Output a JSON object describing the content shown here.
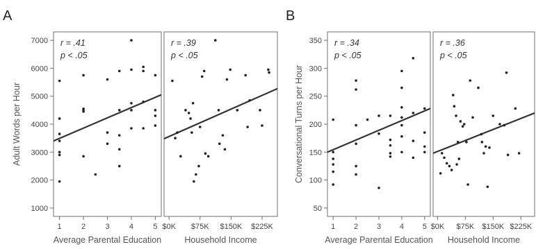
{
  "panel_labels": [
    "A",
    "B"
  ],
  "chart_data": [
    {
      "type": "scatter",
      "panel": "A",
      "ylabel": "Adult Words per Hour",
      "ylim": [
        700,
        7300
      ],
      "yticks": [
        1000,
        2000,
        3000,
        4000,
        5000,
        6000,
        7000
      ],
      "ytick_labels": [
        "1000",
        "2000",
        "3000",
        "4000",
        "5000",
        "6000",
        "7000"
      ],
      "subplots": [
        {
          "xlabel": "Average Parental Education",
          "xlim": [
            0.75,
            5.25
          ],
          "xticks": [
            1,
            2,
            3,
            4,
            5
          ],
          "xtick_labels": [
            "1",
            "2",
            "3",
            "4",
            "5"
          ],
          "r_text": "r = .41",
          "p_text": "p < .05",
          "fit": [
            [
              0.75,
              3400
            ],
            [
              5.25,
              5050
            ]
          ],
          "points": [
            [
              1,
              5550
            ],
            [
              1,
              3650
            ],
            [
              1,
              3400
            ],
            [
              1,
              3000
            ],
            [
              1,
              2900
            ],
            [
              1,
              1950
            ],
            [
              1,
              4200
            ],
            [
              2,
              5750
            ],
            [
              2,
              4550
            ],
            [
              2,
              4450
            ],
            [
              2,
              4500
            ],
            [
              2,
              2850
            ],
            [
              2.5,
              2200
            ],
            [
              3,
              5600
            ],
            [
              3,
              3700
            ],
            [
              3,
              3300
            ],
            [
              3.5,
              5900
            ],
            [
              3.5,
              4500
            ],
            [
              3.5,
              3600
            ],
            [
              3.5,
              3100
            ],
            [
              3.5,
              2500
            ],
            [
              4,
              7000
            ],
            [
              4,
              5950
            ],
            [
              4,
              4750
            ],
            [
              4,
              4500
            ],
            [
              4,
              3850
            ],
            [
              4.5,
              6050
            ],
            [
              4.5,
              5900
            ],
            [
              4.5,
              4800
            ],
            [
              4.5,
              3850
            ],
            [
              5,
              5750
            ],
            [
              5,
              4500
            ],
            [
              5,
              4300
            ],
            [
              5,
              3950
            ]
          ]
        },
        {
          "xlabel": "Household Income",
          "xlim": [
            -12,
            262
          ],
          "xticks": [
            0,
            75,
            150,
            225
          ],
          "xtick_labels": [
            "$0K",
            "$75K",
            "$150K",
            "$225K"
          ],
          "r_text": "r = .39",
          "p_text": "p < .05",
          "fit": [
            [
              -12,
              3480
            ],
            [
              262,
              5270
            ]
          ],
          "points": [
            [
              8,
              5550
            ],
            [
              15,
              3500
            ],
            [
              20,
              3700
            ],
            [
              28,
              2850
            ],
            [
              40,
              4500
            ],
            [
              48,
              4400
            ],
            [
              52,
              4200
            ],
            [
              55,
              3700
            ],
            [
              58,
              4750
            ],
            [
              60,
              1950
            ],
            [
              65,
              2200
            ],
            [
              72,
              2500
            ],
            [
              75,
              3900
            ],
            [
              80,
              5700
            ],
            [
              85,
              5900
            ],
            [
              88,
              2950
            ],
            [
              95,
              2850
            ],
            [
              112,
              7000
            ],
            [
              120,
              4500
            ],
            [
              122,
              3300
            ],
            [
              130,
              3600
            ],
            [
              135,
              3100
            ],
            [
              140,
              5600
            ],
            [
              148,
              5950
            ],
            [
              165,
              4500
            ],
            [
              185,
              5750
            ],
            [
              190,
              3900
            ],
            [
              195,
              4850
            ],
            [
              220,
              4500
            ],
            [
              225,
              3950
            ],
            [
              240,
              5950
            ],
            [
              242,
              5850
            ]
          ]
        }
      ]
    },
    {
      "type": "scatter",
      "panel": "B",
      "ylabel": "Conversational Turns per Hour",
      "ylim": [
        35,
        365
      ],
      "yticks": [
        50,
        100,
        150,
        200,
        250,
        300,
        350
      ],
      "ytick_labels": [
        "50",
        "100",
        "150",
        "200",
        "250",
        "300",
        "350"
      ],
      "subplots": [
        {
          "xlabel": "Average Parental Education",
          "xlim": [
            0.75,
            5.25
          ],
          "xticks": [
            1,
            2,
            3,
            4,
            5
          ],
          "xtick_labels": [
            "1",
            "2",
            "3",
            "4",
            "5"
          ],
          "r_text": "r = .34",
          "p_text": "p < .05",
          "fit": [
            [
              0.75,
              150
            ],
            [
              5.25,
              228
            ]
          ],
          "points": [
            [
              1,
              208
            ],
            [
              1,
              150
            ],
            [
              1,
              138
            ],
            [
              1,
              128
            ],
            [
              1,
              115
            ],
            [
              1,
              92
            ],
            [
              2,
              278
            ],
            [
              2,
              262
            ],
            [
              2,
              198
            ],
            [
              2,
              165
            ],
            [
              2,
              125
            ],
            [
              2,
              110
            ],
            [
              2.5,
              208
            ],
            [
              3,
              215
            ],
            [
              3,
              183
            ],
            [
              3,
              86
            ],
            [
              3.5,
              215
            ],
            [
              3.5,
              172
            ],
            [
              3.5,
              162
            ],
            [
              3.5,
              148
            ],
            [
              3.5,
              142
            ],
            [
              4,
              295
            ],
            [
              4,
              265
            ],
            [
              4,
              230
            ],
            [
              4,
              212
            ],
            [
              4,
              198
            ],
            [
              4,
              178
            ],
            [
              4,
              150
            ],
            [
              4.5,
              318
            ],
            [
              4.5,
              220
            ],
            [
              4.5,
              170
            ],
            [
              4.5,
              140
            ],
            [
              5,
              228
            ],
            [
              5,
              185
            ],
            [
              5,
              160
            ],
            [
              5,
              150
            ]
          ]
        },
        {
          "xlabel": "Household Income",
          "xlim": [
            -12,
            262
          ],
          "xticks": [
            0,
            75,
            150,
            225
          ],
          "xtick_labels": [
            "$0K",
            "$75K",
            "$150K",
            "$225K"
          ],
          "r_text": "r = .36",
          "p_text": "p < .05",
          "fit": [
            [
              -12,
              148
            ],
            [
              262,
              220
            ]
          ],
          "points": [
            [
              8,
              112
            ],
            [
              12,
              148
            ],
            [
              18,
              140
            ],
            [
              25,
              130
            ],
            [
              32,
              125
            ],
            [
              38,
              118
            ],
            [
              42,
              252
            ],
            [
              45,
              232
            ],
            [
              50,
              215
            ],
            [
              52,
              128
            ],
            [
              55,
              168
            ],
            [
              58,
              138
            ],
            [
              62,
              205
            ],
            [
              68,
              196
            ],
            [
              72,
              200
            ],
            [
              78,
              168
            ],
            [
              82,
              92
            ],
            [
              88,
              278
            ],
            [
              95,
              212
            ],
            [
              110,
              265
            ],
            [
              118,
              182
            ],
            [
              120,
              168
            ],
            [
              125,
              148
            ],
            [
              130,
              160
            ],
            [
              135,
              88
            ],
            [
              140,
              158
            ],
            [
              150,
              215
            ],
            [
              168,
              200
            ],
            [
              180,
              198
            ],
            [
              186,
              292
            ],
            [
              190,
              145
            ],
            [
              210,
              228
            ],
            [
              220,
              148
            ]
          ]
        }
      ]
    }
  ]
}
